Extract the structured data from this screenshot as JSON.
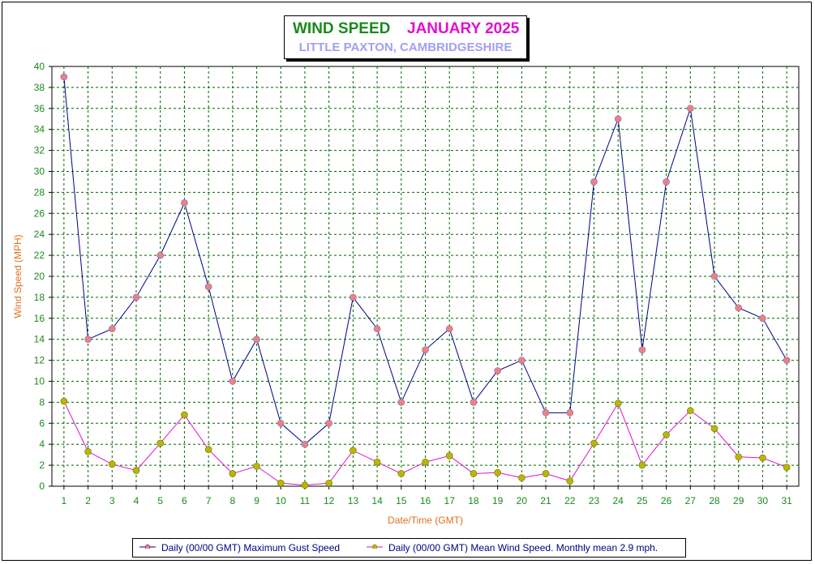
{
  "title": {
    "main_left": "WIND SPEED",
    "main_right": "JANUARY 2025",
    "subtitle": "LITTLE PAXTON, CAMBRIDGESHIRE"
  },
  "chart_data": {
    "type": "line",
    "xlabel": "Date/Time (GMT)",
    "ylabel": "Wind Speed (MPH)",
    "ylim": [
      0,
      40
    ],
    "yticks": [
      0,
      2,
      4,
      6,
      8,
      10,
      12,
      14,
      16,
      18,
      20,
      22,
      24,
      26,
      28,
      30,
      32,
      34,
      36,
      38,
      40
    ],
    "x": [
      "1",
      "2",
      "3",
      "4",
      "5",
      "6",
      "7",
      "8",
      "9",
      "10",
      "11",
      "12",
      "13",
      "14",
      "15",
      "16",
      "17",
      "18",
      "19",
      "20",
      "21",
      "22",
      "23",
      "24",
      "25",
      "26",
      "27",
      "28",
      "29",
      "30",
      "31"
    ],
    "grid": true,
    "legend_position": "bottom",
    "series": [
      {
        "name": "Daily (00/00 GMT) Maximum Gust Speed",
        "color": "#000080",
        "marker_color": "#f08080",
        "values": [
          39,
          14,
          15,
          18,
          22,
          27,
          19,
          10,
          14,
          6,
          4,
          6,
          18,
          15,
          8,
          13,
          15,
          8,
          11,
          12,
          7,
          7,
          29,
          35,
          13,
          29,
          36,
          20,
          17,
          16,
          12
        ]
      },
      {
        "name": "Daily (00/00 GMT) Mean Wind Speed. Monthly mean 2.9 mph.",
        "color": "#e010d0",
        "marker_color": "#b8b800",
        "values": [
          8.1,
          3.3,
          2.1,
          1.5,
          4.1,
          6.8,
          3.5,
          1.2,
          1.9,
          0.3,
          0.1,
          0.3,
          3.4,
          2.3,
          1.2,
          2.3,
          2.9,
          1.2,
          1.3,
          0.8,
          1.2,
          0.5,
          4.1,
          7.9,
          2.0,
          4.9,
          7.2,
          5.5,
          2.8,
          2.7,
          1.8
        ]
      }
    ]
  },
  "colors": {
    "grid": "#006400",
    "tick_labels": "#1a8a1a",
    "axis_titles": "#e07020"
  }
}
